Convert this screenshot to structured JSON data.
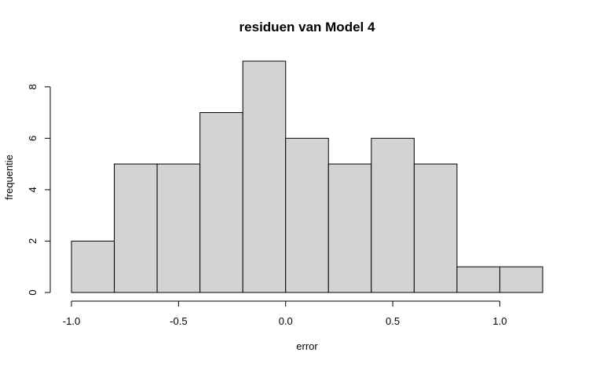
{
  "chart_data": {
    "type": "bar",
    "title": "residuen van Model 4",
    "xlabel": "error",
    "ylabel": "frequentie",
    "xlim": [
      -1.0,
      1.2
    ],
    "ylim": [
      0,
      9
    ],
    "bin_edges": [
      -1.0,
      -0.8,
      -0.6,
      -0.4,
      -0.2,
      0.0,
      0.2,
      0.4,
      0.6,
      0.8,
      1.0,
      1.2
    ],
    "values": [
      2,
      5,
      5,
      7,
      9,
      6,
      5,
      6,
      5,
      1,
      1
    ],
    "x_ticks": [
      -1.0,
      -0.5,
      0.0,
      0.5,
      1.0
    ],
    "x_tick_labels": [
      "-1.0",
      "-0.5",
      "0.0",
      "0.5",
      "1.0"
    ],
    "y_ticks": [
      0,
      2,
      4,
      6,
      8
    ],
    "y_tick_labels": [
      "0",
      "2",
      "4",
      "6",
      "8"
    ],
    "grid": false,
    "colors": {
      "bar_fill": "#d3d3d3",
      "bar_stroke": "#000000"
    }
  }
}
